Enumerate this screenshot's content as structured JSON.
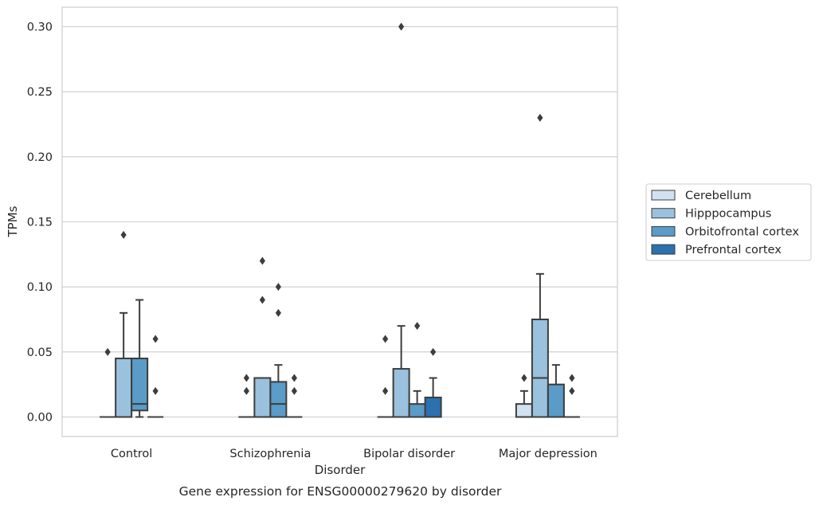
{
  "chart_data": {
    "type": "box",
    "caption": "Gene expression for ENSG00000279620 by disorder",
    "xlabel": "Disorder",
    "ylabel": "TPMs",
    "ylim": [
      -0.015,
      0.315
    ],
    "yticks": [
      "0.00",
      "0.05",
      "0.10",
      "0.15",
      "0.20",
      "0.25",
      "0.30"
    ],
    "ytick_values": [
      0,
      0.05,
      0.1,
      0.15,
      0.2,
      0.25,
      0.3
    ],
    "grid": true,
    "legend_placement": "right, outside plot",
    "categories": [
      "Control",
      "Schizophrenia",
      "Bipolar disorder",
      "Major depression"
    ],
    "series": [
      {
        "name": "Cerebellum",
        "color": "#d0e1f2",
        "boxes": [
          {
            "category": "Control",
            "q1": 0,
            "median": 0,
            "q3": 0,
            "whisker_low": 0,
            "whisker_high": 0,
            "outliers": [
              0.05
            ]
          },
          {
            "category": "Schizophrenia",
            "q1": 0,
            "median": 0,
            "q3": 0,
            "whisker_low": 0,
            "whisker_high": 0,
            "outliers": [
              0.02,
              0.03
            ]
          },
          {
            "category": "Bipolar disorder",
            "q1": 0,
            "median": 0,
            "q3": 0,
            "whisker_low": 0,
            "whisker_high": 0,
            "outliers": [
              0.02,
              0.06
            ]
          },
          {
            "category": "Major depression",
            "q1": 0,
            "median": 0,
            "q3": 0.01,
            "whisker_low": 0,
            "whisker_high": 0.02,
            "outliers": [
              0.03
            ]
          }
        ]
      },
      {
        "name": "Hipppocampus",
        "color": "#9ac1dd",
        "boxes": [
          {
            "category": "Control",
            "q1": 0,
            "median": 0,
            "q3": 0.045,
            "whisker_low": 0,
            "whisker_high": 0.08,
            "outliers": [
              0.14
            ]
          },
          {
            "category": "Schizophrenia",
            "q1": 0,
            "median": 0,
            "q3": 0.03,
            "whisker_low": 0,
            "whisker_high": 0.03,
            "outliers": [
              0.09,
              0.12
            ]
          },
          {
            "category": "Bipolar disorder",
            "q1": 0,
            "median": 0,
            "q3": 0.037,
            "whisker_low": 0,
            "whisker_high": 0.07,
            "outliers": [
              0.3
            ]
          },
          {
            "category": "Major depression",
            "q1": 0,
            "median": 0.03,
            "q3": 0.075,
            "whisker_low": 0,
            "whisker_high": 0.11,
            "outliers": [
              0.23
            ]
          }
        ]
      },
      {
        "name": "Orbitofrontal cortex",
        "color": "#5a9bc7",
        "boxes": [
          {
            "category": "Control",
            "q1": 0.005,
            "median": 0.01,
            "q3": 0.045,
            "whisker_low": 0,
            "whisker_high": 0.09,
            "outliers": []
          },
          {
            "category": "Schizophrenia",
            "q1": 0,
            "median": 0.01,
            "q3": 0.027,
            "whisker_low": 0,
            "whisker_high": 0.04,
            "outliers": [
              0.08,
              0.1
            ]
          },
          {
            "category": "Bipolar disorder",
            "q1": 0,
            "median": 0,
            "q3": 0.01,
            "whisker_low": 0,
            "whisker_high": 0.02,
            "outliers": [
              0.07
            ]
          },
          {
            "category": "Major depression",
            "q1": 0,
            "median": 0,
            "q3": 0.025,
            "whisker_low": 0,
            "whisker_high": 0.04,
            "outliers": []
          }
        ]
      },
      {
        "name": "Prefrontal cortex",
        "color": "#2b70af",
        "boxes": [
          {
            "category": "Control",
            "q1": 0,
            "median": 0,
            "q3": 0,
            "whisker_low": 0,
            "whisker_high": 0,
            "outliers": [
              0.02,
              0.06
            ]
          },
          {
            "category": "Schizophrenia",
            "q1": 0,
            "median": 0,
            "q3": 0,
            "whisker_low": 0,
            "whisker_high": 0,
            "outliers": [
              0.02,
              0.03
            ]
          },
          {
            "category": "Bipolar disorder",
            "q1": 0,
            "median": 0,
            "q3": 0.015,
            "whisker_low": 0,
            "whisker_high": 0.03,
            "outliers": [
              0.05
            ]
          },
          {
            "category": "Major depression",
            "q1": 0,
            "median": 0,
            "q3": 0,
            "whisker_low": 0,
            "whisker_high": 0,
            "outliers": [
              0.02,
              0.03
            ]
          }
        ]
      }
    ]
  }
}
